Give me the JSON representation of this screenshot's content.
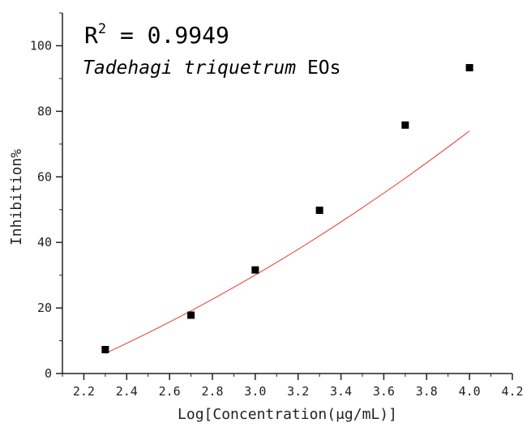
{
  "chart_data": {
    "type": "scatter",
    "xlabel": "Log[Concentration(μg/mL)]",
    "ylabel": "Inhibition%",
    "xlim": [
      2.1,
      4.2
    ],
    "ylim": [
      0,
      110
    ],
    "x_ticks": [
      "2.2",
      "2.4",
      "2.6",
      "2.8",
      "3.0",
      "3.2",
      "3.4",
      "3.6",
      "3.8",
      "4.0",
      "4.2"
    ],
    "y_ticks": [
      "0",
      "20",
      "40",
      "60",
      "80",
      "100"
    ],
    "annotation": {
      "r_label": "R",
      "r_sup": "2",
      "r_value": " = 0.9949",
      "species_italic": "Tadehagi triquetrum",
      "species_suffix": " EOs"
    },
    "series": [
      {
        "marker": "square",
        "color": "#000000",
        "points": [
          {
            "x": 2.3,
            "y": 7.3
          },
          {
            "x": 2.7,
            "y": 17.8
          },
          {
            "x": 3.0,
            "y": 31.6
          },
          {
            "x": 3.3,
            "y": 49.8
          },
          {
            "x": 3.7,
            "y": 75.8
          },
          {
            "x": 4.0,
            "y": 93.3
          }
        ]
      }
    ],
    "fit": {
      "color": "#e8382e",
      "x_range": [
        2.3,
        4.0
      ],
      "points": [
        {
          "x": 2.3,
          "y": 6.1
        },
        {
          "x": 2.5,
          "y": 12.4
        },
        {
          "x": 2.7,
          "y": 19.1
        },
        {
          "x": 2.9,
          "y": 26.3
        },
        {
          "x": 3.1,
          "y": 33.9
        },
        {
          "x": 3.3,
          "y": 42.0
        },
        {
          "x": 3.5,
          "y": 50.6
        },
        {
          "x": 3.7,
          "y": 59.6
        },
        {
          "x": 3.9,
          "y": 69.1
        },
        {
          "x": 4.0,
          "y": 74.0
        }
      ]
    }
  }
}
